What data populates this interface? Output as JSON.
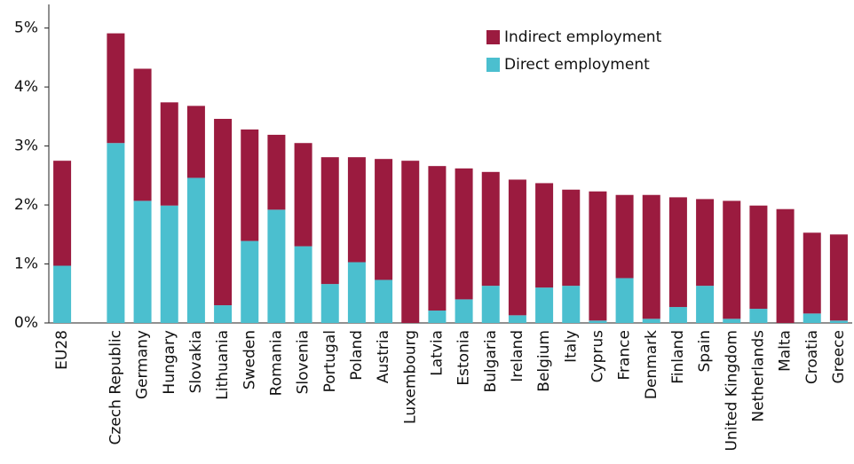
{
  "chart_data": {
    "type": "stacked_bar",
    "categories": [
      "EU28",
      null,
      "Czech Republic",
      "Germany",
      "Hungary",
      "Slovakia",
      "Lithuania",
      "Sweden",
      "Romania",
      "Slovenia",
      "Portugal",
      "Poland",
      "Austria",
      "Luxembourg",
      "Latvia",
      "Estonia",
      "Bulgaria",
      "Ireland",
      "Belgium",
      "Italy",
      "Cyprus",
      "France",
      "Denmark",
      "Finland",
      "Spain",
      "United Kingdom",
      "Netherlands",
      "Malta",
      "Croatia",
      "Greece"
    ],
    "series": [
      {
        "name": "Direct employment",
        "color": "#4bbfcf",
        "values": [
          0.97,
          null,
          3.05,
          2.07,
          1.99,
          2.46,
          0.3,
          1.39,
          1.92,
          1.3,
          0.66,
          1.03,
          0.73,
          0,
          0.21,
          0.4,
          0.63,
          0.13,
          0.6,
          0.63,
          0.04,
          0.76,
          0.07,
          0.27,
          0.63,
          0.07,
          0.24,
          0,
          0.16,
          0.04
        ]
      },
      {
        "name": "Indirect employment",
        "color": "#9b1b3f",
        "values": [
          1.78,
          null,
          1.86,
          2.24,
          1.75,
          1.22,
          3.16,
          1.89,
          1.27,
          1.75,
          2.15,
          1.78,
          2.05,
          2.75,
          2.45,
          2.22,
          1.93,
          2.3,
          1.77,
          1.63,
          2.19,
          1.41,
          2.1,
          1.86,
          1.47,
          2.0,
          1.75,
          1.93,
          1.37,
          1.46
        ]
      }
    ],
    "ylim": [
      0,
      5.4
    ],
    "yticks": [
      {
        "value": 0,
        "label": "0%"
      },
      {
        "value": 1,
        "label": "1%"
      },
      {
        "value": 2,
        "label": "2%"
      },
      {
        "value": 3,
        "label": "3%"
      },
      {
        "value": 4,
        "label": "4%"
      },
      {
        "value": 5,
        "label": "5%"
      }
    ],
    "grid": false
  }
}
